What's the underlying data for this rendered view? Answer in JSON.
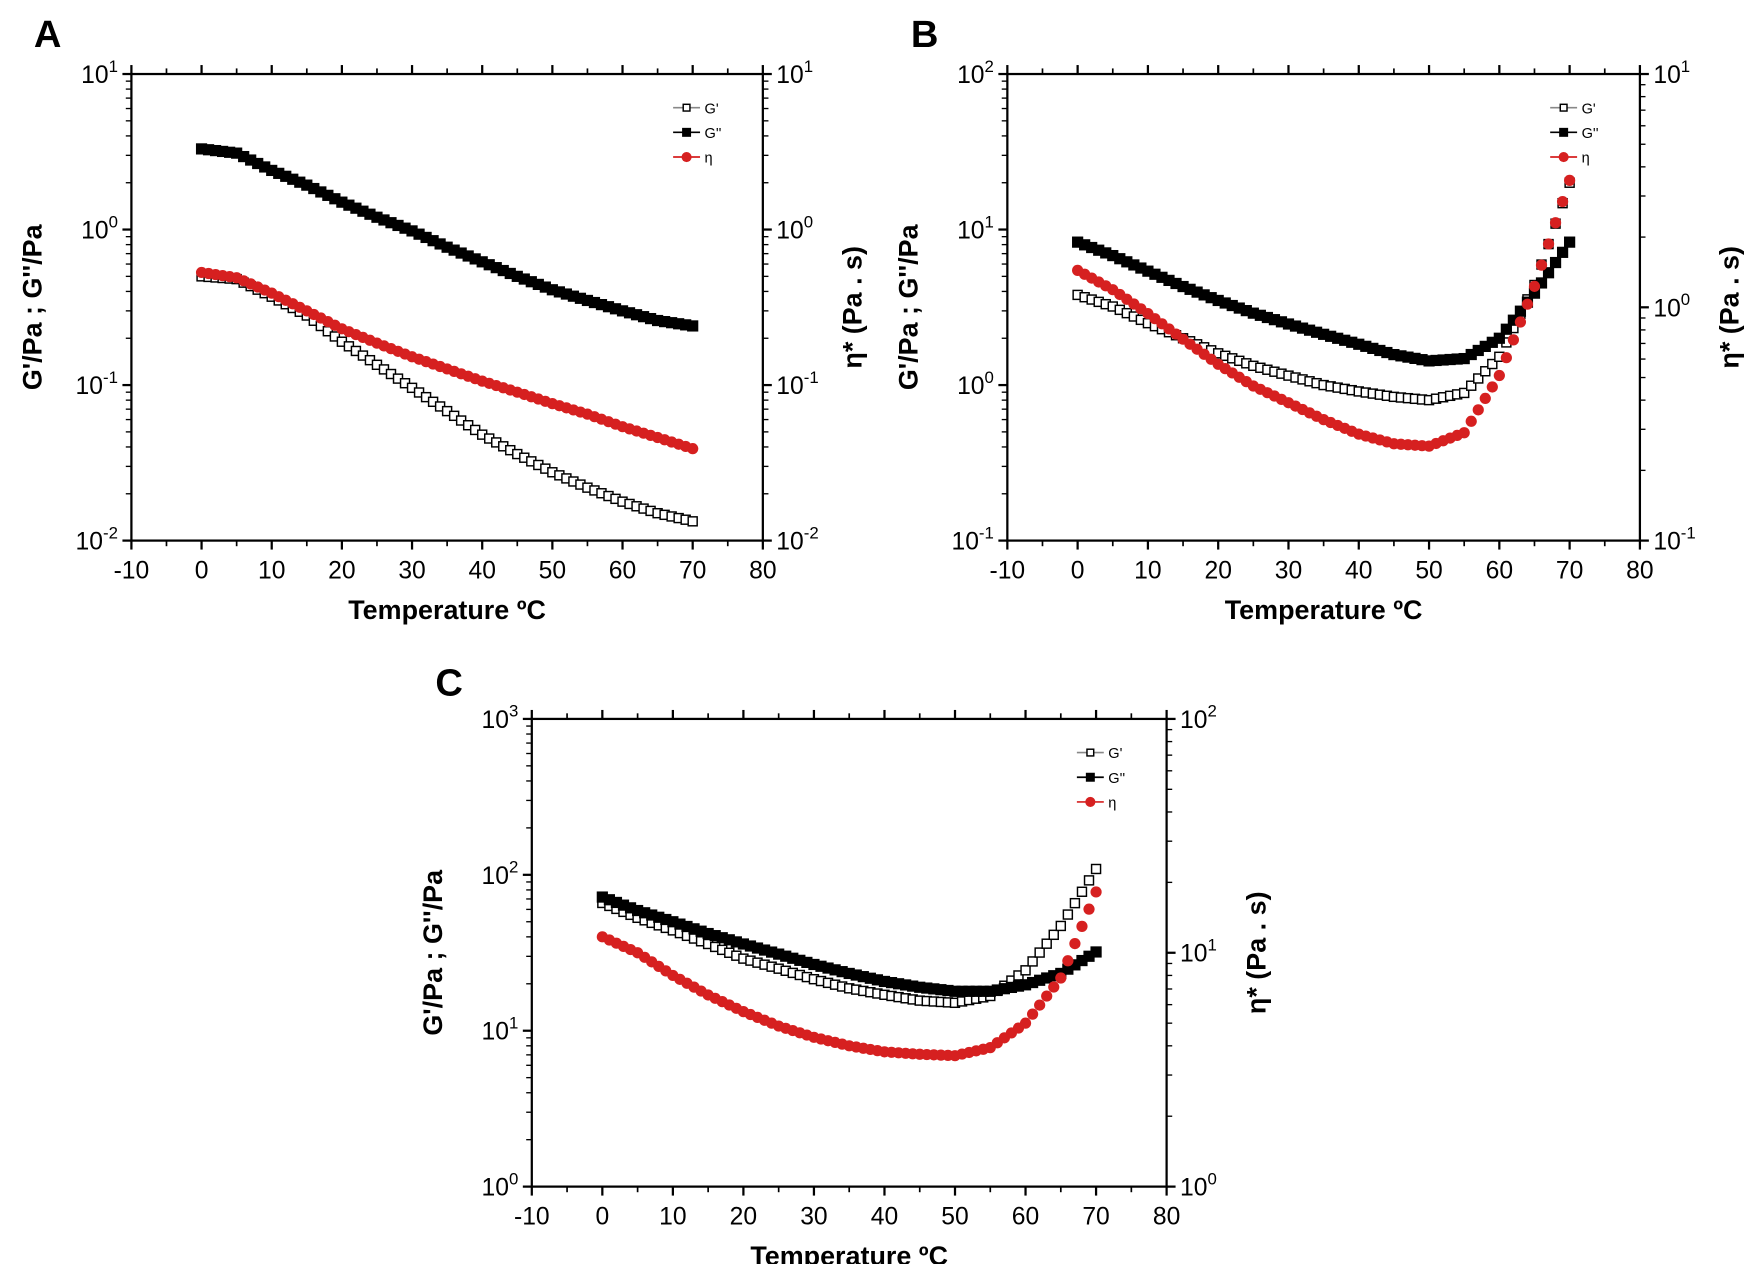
{
  "chart_data": [
    {
      "type": "scatter",
      "panel_label": "A",
      "xlabel": "Temperature ºC",
      "ylabel": "G'/Pa ; G''/Pa",
      "y2label": "η* (Pa . s)",
      "xlim": [
        -10,
        80
      ],
      "xticks": [
        "-10",
        "0",
        "10",
        "20",
        "30",
        "40",
        "50",
        "60",
        "70",
        "80"
      ],
      "ylim": [
        0.01,
        10
      ],
      "yscale": "log",
      "y2lim": [
        0.01,
        10
      ],
      "y2scale": "log",
      "yticks": [
        {
          "base": "10",
          "exp": "-2"
        },
        {
          "base": "10",
          "exp": "-1"
        },
        {
          "base": "10",
          "exp": "0"
        },
        {
          "base": "10",
          "exp": "1"
        }
      ],
      "y2ticks": [
        {
          "base": "10",
          "exp": "-2"
        },
        {
          "base": "10",
          "exp": "-1"
        },
        {
          "base": "10",
          "exp": "0"
        },
        {
          "base": "10",
          "exp": "1"
        }
      ],
      "legend_position": "top-right",
      "x": [
        0,
        5,
        10,
        15,
        20,
        25,
        30,
        35,
        40,
        45,
        50,
        55,
        60,
        65,
        70
      ],
      "series": [
        {
          "name": "G'",
          "axis": "left",
          "marker": "open-square",
          "color": "#000000",
          "values": [
            0.5,
            0.48,
            0.37,
            0.28,
            0.19,
            0.135,
            0.096,
            0.068,
            0.048,
            0.036,
            0.0275,
            0.0219,
            0.0178,
            0.015,
            0.0133
          ]
        },
        {
          "name": "G''",
          "axis": "left",
          "marker": "filled-square",
          "color": "#000000",
          "values": [
            3.3,
            3.1,
            2.4,
            1.93,
            1.5,
            1.2,
            0.98,
            0.77,
            0.62,
            0.5,
            0.41,
            0.35,
            0.3,
            0.26,
            0.24
          ]
        },
        {
          "name": "η",
          "axis": "right",
          "marker": "filled-circle",
          "color": "#d62020",
          "values": [
            0.53,
            0.49,
            0.39,
            0.3,
            0.23,
            0.186,
            0.152,
            0.127,
            0.106,
            0.09,
            0.076,
            0.065,
            0.054,
            0.046,
            0.039
          ]
        }
      ]
    },
    {
      "type": "scatter",
      "panel_label": "B",
      "xlabel": "Temperature ºC",
      "ylabel": "G'/Pa ; G''/Pa",
      "y2label": "η* (Pa . s)",
      "xlim": [
        -10,
        80
      ],
      "xticks": [
        "-10",
        "0",
        "10",
        "20",
        "30",
        "40",
        "50",
        "60",
        "70",
        "80"
      ],
      "ylim": [
        0.1,
        100
      ],
      "yscale": "log",
      "y2lim": [
        0.1,
        10
      ],
      "y2scale": "log",
      "yticks": [
        {
          "base": "10",
          "exp": "-1"
        },
        {
          "base": "10",
          "exp": "0"
        },
        {
          "base": "10",
          "exp": "1"
        },
        {
          "base": "10",
          "exp": "2"
        }
      ],
      "y2ticks": [
        {
          "base": "10",
          "exp": "-1"
        },
        {
          "base": "10",
          "exp": "0"
        },
        {
          "base": "10",
          "exp": "1"
        }
      ],
      "legend_position": "top-right",
      "x": [
        0,
        5,
        10,
        15,
        20,
        25,
        30,
        35,
        40,
        45,
        50,
        55,
        60,
        65,
        70
      ],
      "series": [
        {
          "name": "G'",
          "axis": "left",
          "marker": "open-square",
          "color": "#000000",
          "values": [
            3.8,
            3.2,
            2.5,
            2.0,
            1.6,
            1.33,
            1.15,
            1.0,
            0.91,
            0.84,
            0.8,
            0.89,
            1.52,
            4.4,
            20
          ]
        },
        {
          "name": "G''",
          "axis": "left",
          "marker": "filled-square",
          "color": "#000000",
          "values": [
            8.3,
            6.8,
            5.4,
            4.3,
            3.5,
            2.9,
            2.47,
            2.12,
            1.83,
            1.57,
            1.43,
            1.48,
            2.0,
            3.9,
            8.3
          ]
        },
        {
          "name": "η",
          "axis": "right",
          "marker": "filled-circle",
          "color": "#d62020",
          "values": [
            1.44,
            1.19,
            0.94,
            0.73,
            0.57,
            0.46,
            0.39,
            0.33,
            0.286,
            0.26,
            0.254,
            0.29,
            0.51,
            1.23,
            3.5
          ]
        }
      ]
    },
    {
      "type": "scatter",
      "panel_label": "C",
      "xlabel": "Temperature ºC",
      "ylabel": "G'/Pa ; G''/Pa",
      "y2label": "η* (Pa . s)",
      "xlim": [
        -10,
        80
      ],
      "xticks": [
        "-10",
        "0",
        "10",
        "20",
        "30",
        "40",
        "50",
        "60",
        "70",
        "80"
      ],
      "ylim": [
        1,
        1000
      ],
      "yscale": "log",
      "y2lim": [
        1,
        100
      ],
      "y2scale": "log",
      "yticks": [
        {
          "base": "10",
          "exp": "0"
        },
        {
          "base": "10",
          "exp": "1"
        },
        {
          "base": "10",
          "exp": "2"
        },
        {
          "base": "10",
          "exp": "3"
        }
      ],
      "y2ticks": [
        {
          "base": "10",
          "exp": "0"
        },
        {
          "base": "10",
          "exp": "1"
        },
        {
          "base": "10",
          "exp": "2"
        }
      ],
      "legend_position": "top-right",
      "x": [
        0,
        5,
        10,
        15,
        20,
        25,
        30,
        35,
        40,
        45,
        50,
        55,
        60,
        65,
        70
      ],
      "series": [
        {
          "name": "G'",
          "axis": "left",
          "marker": "open-square",
          "color": "#000000",
          "values": [
            66,
            53,
            44,
            36,
            29,
            25,
            21.4,
            18.7,
            17,
            15.6,
            15.1,
            16.7,
            24.4,
            47,
            109
          ]
        },
        {
          "name": "G''",
          "axis": "left",
          "marker": "filled-square",
          "color": "#000000",
          "values": [
            72,
            59,
            50,
            42,
            36,
            31,
            26.6,
            23.3,
            20.7,
            19,
            17.9,
            17.9,
            19.7,
            23.3,
            32
          ]
        },
        {
          "name": "η",
          "axis": "right",
          "marker": "filled-circle",
          "color": "#d62020",
          "values": [
            11.7,
            10,
            8.0,
            6.6,
            5.6,
            4.86,
            4.35,
            4.0,
            3.77,
            3.68,
            3.63,
            3.93,
            5.0,
            7.8,
            18.2
          ]
        }
      ]
    }
  ]
}
